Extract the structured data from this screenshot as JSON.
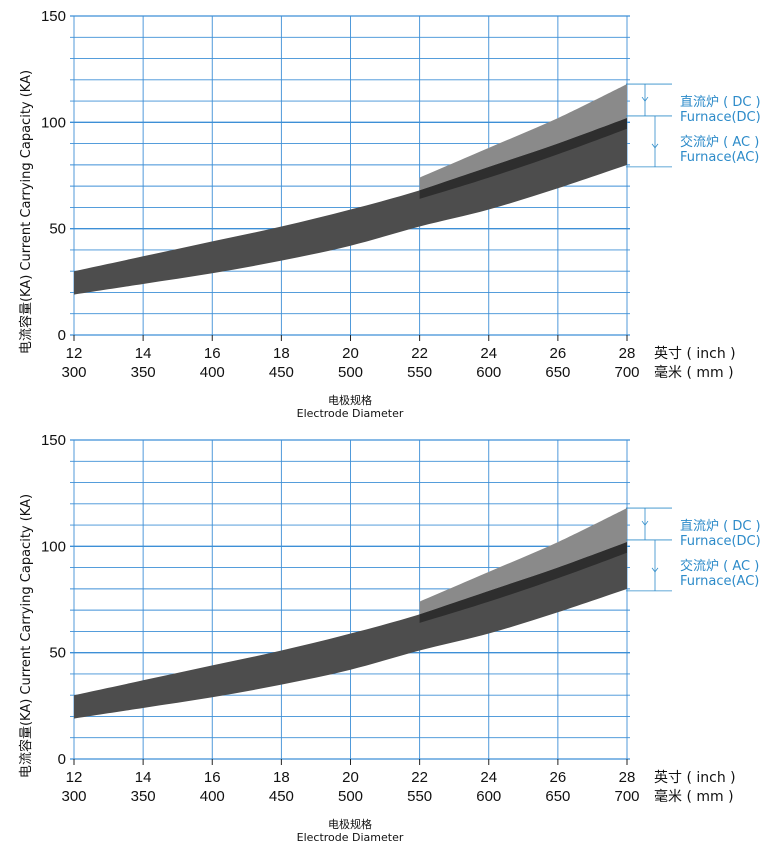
{
  "chart_data": [
    {
      "type": "area",
      "title": "",
      "ylabel": "电流容量(KA) Current Carrying Capacity (KA)",
      "xlabel_cn": "电极规格",
      "xlabel_en": "Electrode Diameter",
      "ylim": [
        0,
        150
      ],
      "yticks": [
        0,
        50,
        100,
        150
      ],
      "grid": true,
      "x_inch": [
        12,
        14,
        16,
        18,
        20,
        22,
        24,
        26,
        28
      ],
      "x_mm": [
        300,
        350,
        400,
        450,
        500,
        550,
        600,
        650,
        700
      ],
      "unit_inch": "英寸 ( inch )",
      "unit_mm": "毫米 ( mm )",
      "series": [
        {
          "name": "交流炉 ( AC ) Furnace(AC)",
          "x": [
            12,
            14,
            16,
            18,
            20,
            22,
            24,
            26,
            28
          ],
          "lower": [
            19,
            24,
            29,
            35,
            42,
            51,
            59,
            69,
            80
          ],
          "upper": [
            30,
            37,
            44,
            51,
            59,
            68,
            79,
            90,
            102
          ]
        },
        {
          "name": "直流炉 ( DC ) Furnace(DC)",
          "x": [
            22,
            24,
            26,
            28
          ],
          "lower": [
            64,
            74,
            85,
            97
          ],
          "upper": [
            74,
            88,
            102,
            118
          ]
        }
      ],
      "legend": {
        "dc_cn": "直流炉 ( DC )",
        "dc_en": "Furnace(DC)",
        "ac_cn": "交流炉 ( AC )",
        "ac_en": "Furnace(AC)"
      }
    },
    {
      "type": "area",
      "title": "",
      "ylabel": "电流容量(KA) Current Carrying Capacity (KA)",
      "xlabel_cn": "电极规格",
      "xlabel_en": "Electrode Diameter",
      "ylim": [
        0,
        150
      ],
      "yticks": [
        0,
        50,
        100,
        150
      ],
      "grid": true,
      "x_inch": [
        12,
        14,
        16,
        18,
        20,
        22,
        24,
        26,
        28
      ],
      "x_mm": [
        300,
        350,
        400,
        450,
        500,
        550,
        600,
        650,
        700
      ],
      "unit_inch": "英寸 ( inch )",
      "unit_mm": "毫米 ( mm )",
      "series": [
        {
          "name": "交流炉 ( AC ) Furnace(AC)",
          "x": [
            12,
            14,
            16,
            18,
            20,
            22,
            24,
            26,
            28
          ],
          "lower": [
            19,
            24,
            29,
            35,
            42,
            51,
            59,
            69,
            80
          ],
          "upper": [
            30,
            37,
            44,
            51,
            59,
            68,
            79,
            90,
            102
          ]
        },
        {
          "name": "直流炉 ( DC ) Furnace(DC)",
          "x": [
            22,
            24,
            26,
            28
          ],
          "lower": [
            64,
            74,
            85,
            97
          ],
          "upper": [
            74,
            88,
            102,
            118
          ]
        }
      ],
      "legend": {
        "dc_cn": "直流炉 ( DC )",
        "dc_en": "Furnace(DC)",
        "ac_cn": "交流炉 ( AC )",
        "ac_en": "Furnace(AC)"
      }
    }
  ],
  "colors": {
    "grid": "#3d8fd6",
    "legend": "#2d8bc9",
    "ac_band": "#4d4d4d",
    "dc_band": "#8a8a8a",
    "overlap": "#2e2e2e"
  }
}
